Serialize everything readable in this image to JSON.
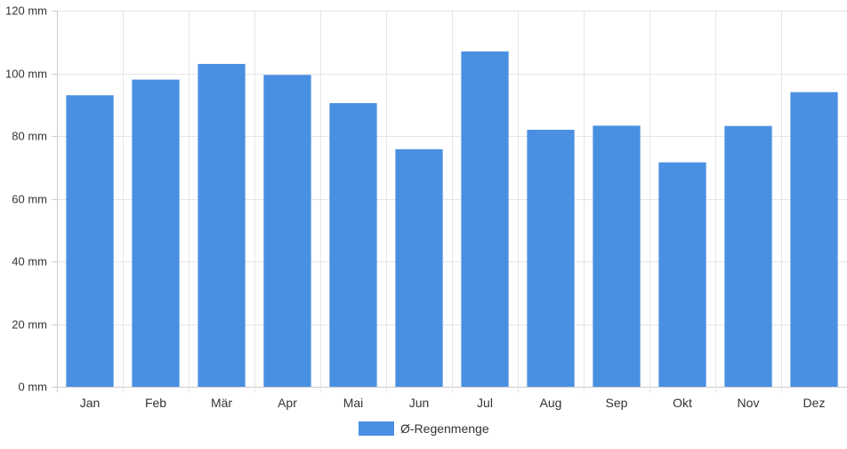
{
  "chart_data": {
    "type": "bar",
    "categories": [
      "Jan",
      "Feb",
      "Mär",
      "Apr",
      "Mai",
      "Jun",
      "Jul",
      "Aug",
      "Sep",
      "Okt",
      "Nov",
      "Dez"
    ],
    "series": [
      {
        "name": "Ø-Regenmenge",
        "color": "#4a90e2",
        "values": [
          93,
          98,
          103,
          99.5,
          90.5,
          75.8,
          107,
          82,
          83.3,
          71.6,
          83.2,
          94
        ]
      }
    ],
    "ylim": [
      0,
      120
    ],
    "yticks": [
      0,
      20,
      40,
      60,
      80,
      100,
      120
    ],
    "ytick_labels": [
      "0 mm",
      "20 mm",
      "40 mm",
      "60 mm",
      "80 mm",
      "100 mm",
      "120 mm"
    ],
    "grid": true,
    "legend_position": "bottom-center"
  }
}
